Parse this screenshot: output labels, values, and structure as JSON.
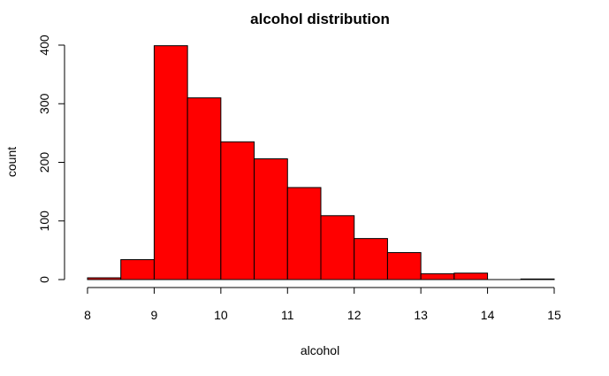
{
  "chart_data": {
    "type": "bar",
    "title": "alcohol distribution",
    "xlabel": "alcohol",
    "ylabel": "count",
    "bins": [
      {
        "start": 8.0,
        "end": 8.5,
        "count": 3
      },
      {
        "start": 8.5,
        "end": 9.0,
        "count": 34
      },
      {
        "start": 9.0,
        "end": 9.5,
        "count": 399
      },
      {
        "start": 9.5,
        "end": 10.0,
        "count": 310
      },
      {
        "start": 10.0,
        "end": 10.5,
        "count": 235
      },
      {
        "start": 10.5,
        "end": 11.0,
        "count": 206
      },
      {
        "start": 11.0,
        "end": 11.5,
        "count": 157
      },
      {
        "start": 11.5,
        "end": 12.0,
        "count": 109
      },
      {
        "start": 12.0,
        "end": 12.5,
        "count": 70
      },
      {
        "start": 12.5,
        "end": 13.0,
        "count": 46
      },
      {
        "start": 13.0,
        "end": 13.5,
        "count": 10
      },
      {
        "start": 13.5,
        "end": 14.0,
        "count": 11
      },
      {
        "start": 14.0,
        "end": 14.5,
        "count": 0
      },
      {
        "start": 14.5,
        "end": 15.0,
        "count": 1
      }
    ],
    "x_ticks": [
      "8",
      "9",
      "10",
      "11",
      "12",
      "13",
      "14",
      "15"
    ],
    "y_ticks": [
      "0",
      "100",
      "200",
      "300",
      "400"
    ],
    "xlim": [
      8,
      15
    ],
    "ylim": [
      0,
      400
    ],
    "bar_color": "#ff0000",
    "grid": false,
    "legend": "none"
  }
}
